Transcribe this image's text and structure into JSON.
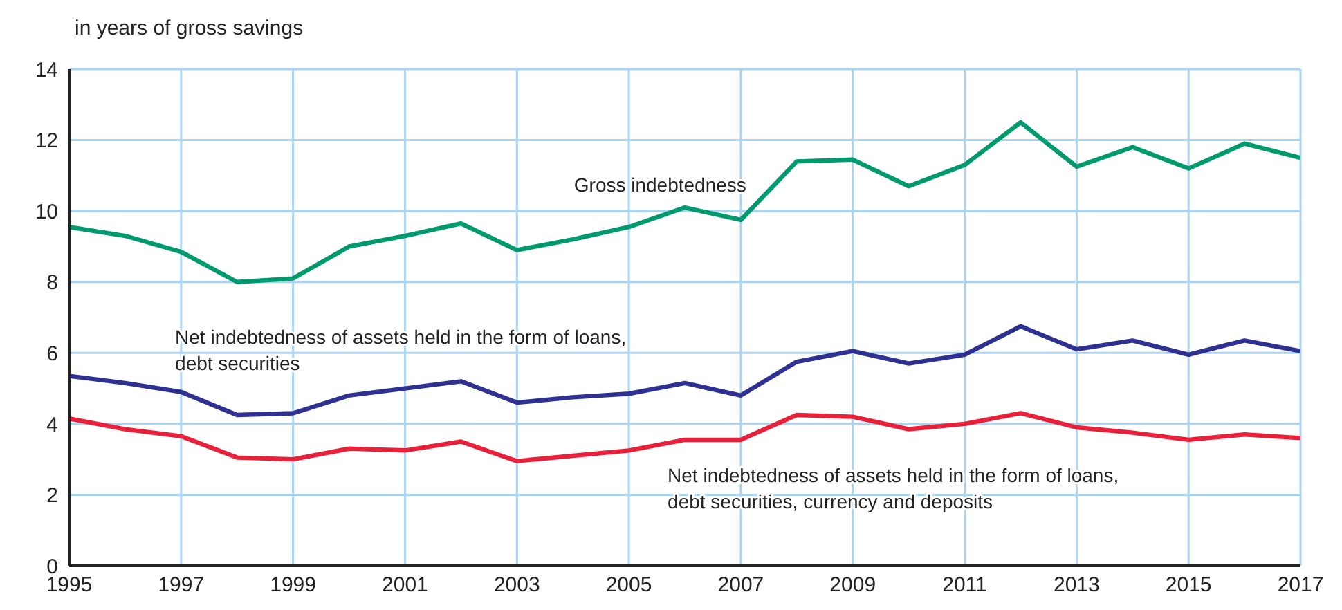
{
  "chart_data": {
    "type": "line",
    "ylabel": "in years of gross savings",
    "x": [
      1995,
      1996,
      1997,
      1998,
      1999,
      2000,
      2001,
      2002,
      2003,
      2004,
      2005,
      2006,
      2007,
      2008,
      2009,
      2010,
      2011,
      2012,
      2013,
      2014,
      2015,
      2016,
      2017
    ],
    "series": [
      {
        "name": "Gross indebtedness",
        "color": "#009a6e",
        "values": [
          9.55,
          9.3,
          8.85,
          8.0,
          8.1,
          9.0,
          9.3,
          9.65,
          8.9,
          9.2,
          9.55,
          10.1,
          9.75,
          11.4,
          11.45,
          10.7,
          11.3,
          12.5,
          11.25,
          11.8,
          11.2,
          11.9,
          11.5
        ]
      },
      {
        "name": "Net indebtedness of assets held in the form of loans,\ndebt securities",
        "color": "#2e3192",
        "values": [
          5.35,
          5.15,
          4.9,
          4.25,
          4.3,
          4.8,
          5.0,
          5.2,
          4.6,
          4.75,
          4.85,
          5.15,
          4.8,
          5.75,
          6.05,
          5.7,
          5.95,
          6.75,
          6.1,
          6.35,
          5.95,
          6.35,
          6.05
        ]
      },
      {
        "name": "Net indebtedness of assets held in the form of loans,\ndebt securities, currency and deposits",
        "color": "#e8203a",
        "values": [
          4.15,
          3.85,
          3.65,
          3.05,
          3.0,
          3.3,
          3.25,
          3.5,
          2.95,
          3.1,
          3.25,
          3.55,
          3.55,
          4.25,
          4.2,
          3.85,
          4.0,
          4.3,
          3.9,
          3.75,
          3.55,
          3.7,
          3.6
        ]
      }
    ],
    "xlim": [
      1995,
      2017
    ],
    "xticks": [
      1995,
      1997,
      1999,
      2001,
      2003,
      2005,
      2007,
      2009,
      2011,
      2013,
      2015,
      2017
    ],
    "ylim": [
      0,
      14
    ],
    "yticks": [
      0,
      2,
      4,
      6,
      8,
      10,
      12,
      14
    ],
    "grid": true,
    "legend": false,
    "marker": "none",
    "line_style": "solid"
  }
}
